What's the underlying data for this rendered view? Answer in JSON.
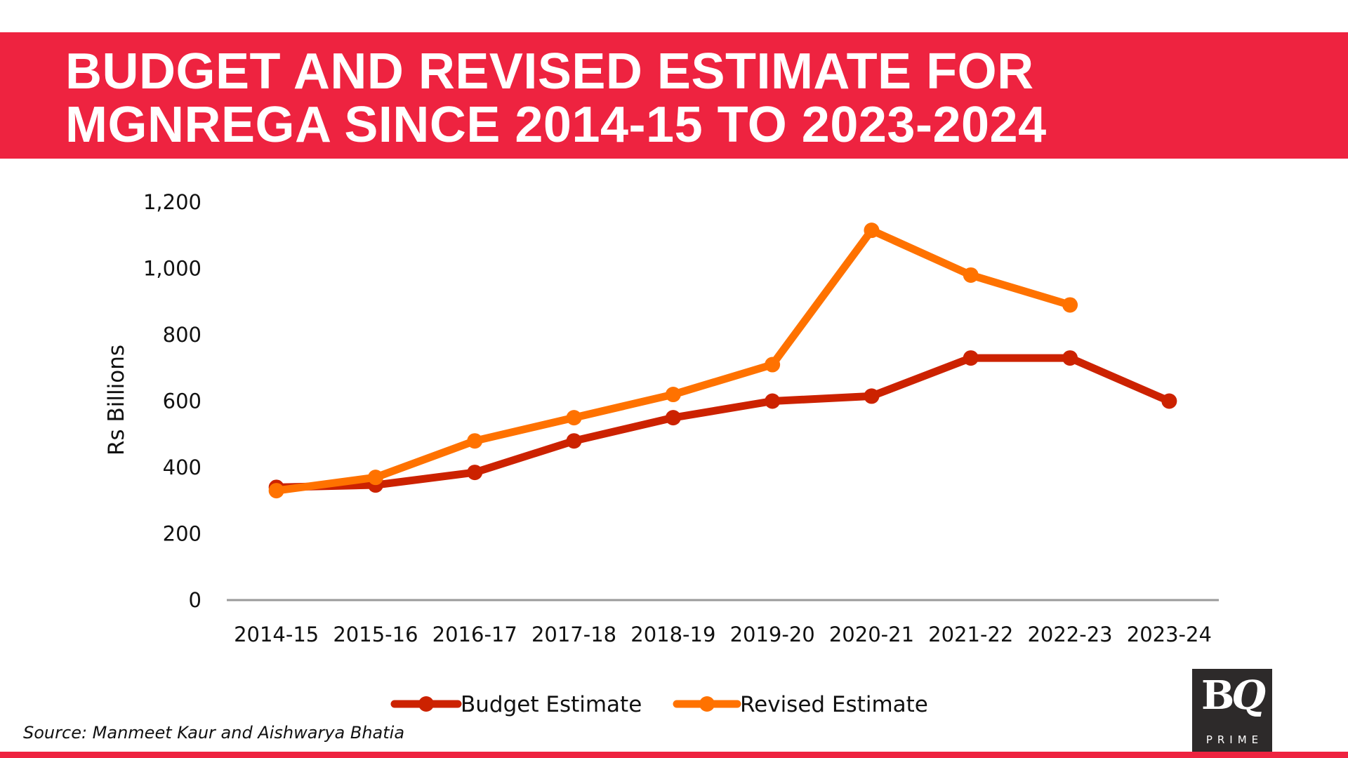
{
  "header": {
    "title_line1": "BUDGET AND REVISED ESTIMATE FOR",
    "title_line2": "MGNREGA SINCE 2014-15 TO 2023-2024",
    "band_color": "#ee2340"
  },
  "chart_data": {
    "type": "line",
    "title": "BUDGET AND REVISED ESTIMATE FOR MGNREGA SINCE 2014-15 TO 2023-2024",
    "xlabel": "",
    "ylabel": "Rs Billions",
    "categories": [
      "2014-15",
      "2015-16",
      "2016-17",
      "2017-18",
      "2018-19",
      "2019-20",
      "2020-21",
      "2021-22",
      "2022-23",
      "2023-24"
    ],
    "ylim": [
      0,
      1200
    ],
    "yticks": [
      0,
      200,
      400,
      600,
      800,
      1000,
      1200
    ],
    "ytick_labels": [
      "0",
      "200",
      "400",
      "600",
      "800",
      "1,000",
      "1,200"
    ],
    "grid": false,
    "legend_position": "bottom",
    "series": [
      {
        "name": "Budget Estimate",
        "color": "#cc2200",
        "values": [
          340,
          347,
          385,
          480,
          550,
          600,
          615,
          730,
          730,
          600
        ]
      },
      {
        "name": "Revised Estimate",
        "color": "#ff7200",
        "values": [
          330,
          370,
          480,
          550,
          620,
          710,
          1115,
          980,
          890,
          null
        ]
      }
    ]
  },
  "footer": {
    "source": "Source: Manmeet Kaur and Aishwarya Bhatia",
    "logo_main": "BQ",
    "logo_b": "B",
    "logo_q": "Q",
    "logo_sub": "PRIME",
    "logo_bg": "#2d2a2a"
  }
}
